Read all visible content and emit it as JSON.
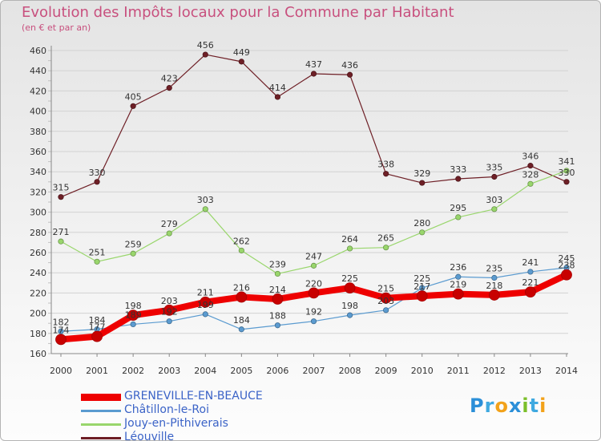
{
  "title": "Evolution des Impôts locaux pour la Commune par Habitant",
  "subtitle": "(en € et par an)",
  "logo": {
    "text": "Proxiti",
    "letters": [
      {
        "char": "P",
        "color": "#2b8fd8"
      },
      {
        "char": "r",
        "color": "#3fa9e0"
      },
      {
        "char": "o",
        "color": "#f2a21a"
      },
      {
        "char": "x",
        "color": "#2b8fd8"
      },
      {
        "char": "i",
        "color": "#7bbf2a"
      },
      {
        "char": "t",
        "color": "#3fa9e0"
      },
      {
        "char": "i",
        "color": "#f2a21a"
      }
    ]
  },
  "colors": {
    "title": "#c8507e",
    "grid": "#d2d2d2",
    "axis": "#888888",
    "legend_text": "#3b63c7",
    "tick_text": "#333333"
  },
  "chart_data": {
    "type": "line",
    "title": "Evolution des Impôts locaux pour la Commune par Habitant",
    "subtitle": "(en € et par an)",
    "x": [
      "2000",
      "2001",
      "2002",
      "2003",
      "2004",
      "2005",
      "2006",
      "2007",
      "2008",
      "2009",
      "2010",
      "2011",
      "2012",
      "2013",
      "2014"
    ],
    "ylim": [
      160,
      460
    ],
    "yticks": [
      160,
      180,
      200,
      220,
      240,
      260,
      280,
      300,
      320,
      340,
      360,
      380,
      400,
      420,
      440,
      460
    ],
    "grid": "horizontal",
    "legend_position": "bottom-left",
    "series": [
      {
        "name": "Léouville",
        "color": "#6e1f26",
        "values": [
          315,
          330,
          405,
          423,
          456,
          449,
          414,
          437,
          436,
          338,
          329,
          333,
          335,
          346,
          330
        ]
      },
      {
        "name": "Jouy-en-Pithiverais",
        "color": "#99d66c",
        "values": [
          271,
          251,
          259,
          279,
          303,
          262,
          239,
          247,
          264,
          265,
          280,
          295,
          303,
          328,
          341
        ]
      },
      {
        "name": "Châtillon-le-Roi",
        "color": "#5b9bd0",
        "values": [
          182,
          184,
          189,
          192,
          199,
          184,
          188,
          192,
          198,
          203,
          225,
          236,
          235,
          241,
          245
        ]
      },
      {
        "name": "GRENEVILLE-EN-BEAUCE",
        "color": "#ee0000",
        "values": [
          174,
          177,
          198,
          203,
          211,
          216,
          214,
          220,
          225,
          215,
          217,
          219,
          218,
          221,
          238
        ]
      }
    ],
    "legend_order": [
      "GRENEVILLE-EN-BEAUCE",
      "Châtillon-le-Roi",
      "Jouy-en-Pithiverais",
      "Léouville"
    ]
  }
}
